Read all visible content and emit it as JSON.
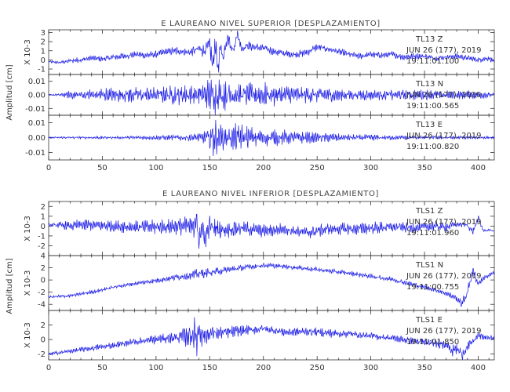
{
  "chart_data": [
    {
      "type": "line",
      "title": "E LAUREANO NIVEL SUPERIOR [DESPLAZAMIENTO]",
      "ylabel": "Amplitud [cm]",
      "xlim": [
        0,
        415
      ],
      "x_ticks": [
        "0",
        "50",
        "100",
        "150",
        "200",
        "250",
        "300",
        "350",
        "400"
      ],
      "panels": [
        {
          "ylim": [
            -1.6,
            3.3
          ],
          "scale_label": "X 10-3",
          "y_ticks": [
            {
              "v": 3,
              "t": "3"
            },
            {
              "v": 2,
              "t": "2"
            },
            {
              "v": 1,
              "t": "1"
            },
            {
              "v": 0,
              "t": "0"
            },
            {
              "v": -1,
              "t": "-1"
            }
          ],
          "station": [
            "TL13   Z",
            "JUN 26 (177), 2019",
            "19:11:01.100"
          ],
          "series": {
            "x": [
              0,
              10,
              20,
              30,
              40,
              50,
              60,
              70,
              80,
              90,
              100,
              110,
              120,
              130,
              140,
              145,
              150,
              153,
              155,
              158,
              160,
              163,
              165,
              168,
              170,
              173,
              175,
              178,
              180,
              185,
              190,
              200,
              210,
              220,
              230,
              240,
              250,
              260,
              270,
              280,
              290,
              300,
              310,
              320,
              330,
              340,
              350,
              360,
              370,
              380,
              390,
              400,
              410,
              415
            ],
            "trend": [
              -0.2,
              -0.3,
              -0.1,
              0.0,
              0.2,
              0.1,
              0.3,
              0.4,
              0.6,
              0.5,
              0.6,
              0.9,
              1.0,
              0.8,
              1.2,
              1.0,
              1.6,
              -0.8,
              2.0,
              -1.3,
              1.5,
              0.2,
              1.8,
              2.6,
              1.4,
              1.1,
              3.0,
              2.0,
              1.2,
              1.6,
              1.4,
              1.3,
              0.9,
              0.7,
              0.6,
              0.8,
              1.4,
              1.2,
              0.9,
              0.6,
              0.4,
              0.6,
              0.5,
              0.6,
              0.3,
              0.4,
              0.4,
              0.2,
              0.3,
              0.4,
              0.2,
              0.0,
              0.2,
              -0.2
            ],
            "amp": [
              0.15,
              0.15,
              0.25,
              0.3,
              0.3,
              0.3,
              0.35,
              0.35,
              0.35,
              0.35,
              0.4,
              0.4,
              0.45,
              0.45,
              0.6,
              0.7,
              1.1,
              1.2,
              1.1,
              0.9,
              0.9,
              0.8,
              0.8,
              0.8,
              0.7,
              0.7,
              0.7,
              0.6,
              0.5,
              0.5,
              0.45,
              0.45,
              0.4,
              0.4,
              0.4,
              0.4,
              0.4,
              0.35,
              0.35,
              0.35,
              0.35,
              0.35,
              0.35,
              0.35,
              0.35,
              0.35,
              0.3,
              0.3,
              0.3,
              0.3,
              0.3,
              0.3,
              0.3,
              0.25
            ]
          }
        },
        {
          "ylim": [
            -0.015,
            0.015
          ],
          "scale_label": "",
          "y_ticks": [
            {
              "v": 0.01,
              "t": "0.01"
            },
            {
              "v": 0,
              "t": "0.00"
            },
            {
              "v": -0.01,
              "t": "-0.01"
            }
          ],
          "station": [
            "TL13   N",
            "JUN 26 (177), 2019",
            "19:11:00.565"
          ],
          "series": {
            "x": [
              0,
              10,
              20,
              30,
              40,
              50,
              60,
              70,
              80,
              90,
              100,
              110,
              120,
              130,
              140,
              150,
              155,
              160,
              165,
              170,
              180,
              190,
              200,
              210,
              220,
              230,
              240,
              250,
              260,
              270,
              280,
              290,
              300,
              310,
              320,
              330,
              340,
              350,
              360,
              370,
              380,
              390,
              400,
              415
            ],
            "trend": [
              0,
              0,
              0,
              0,
              0,
              0,
              0,
              0,
              0,
              0,
              0,
              0,
              0,
              0,
              0,
              0,
              0,
              0,
              0,
              0,
              0,
              0,
              0,
              0,
              0,
              0,
              0,
              0,
              0,
              0,
              0,
              0,
              0,
              0,
              0,
              0,
              0,
              0,
              0,
              0,
              0,
              0,
              0,
              0
            ],
            "amp": [
              0.0005,
              0.0008,
              0.003,
              0.004,
              0.004,
              0.005,
              0.005,
              0.005,
              0.006,
              0.006,
              0.005,
              0.006,
              0.007,
              0.007,
              0.008,
              0.011,
              0.014,
              0.012,
              0.011,
              0.009,
              0.008,
              0.008,
              0.009,
              0.008,
              0.007,
              0.006,
              0.006,
              0.005,
              0.005,
              0.005,
              0.004,
              0.004,
              0.004,
              0.004,
              0.004,
              0.004,
              0.004,
              0.004,
              0.003,
              0.003,
              0.003,
              0.003,
              0.003,
              0.002
            ]
          }
        },
        {
          "ylim": [
            -0.015,
            0.015
          ],
          "scale_label": "",
          "y_ticks": [
            {
              "v": 0.01,
              "t": "0.01"
            },
            {
              "v": 0,
              "t": "0.00"
            },
            {
              "v": -0.01,
              "t": "-0.01"
            }
          ],
          "station": [
            "TL13   E",
            "JUN 26 (177), 2019",
            "19:11:00.820"
          ],
          "series": {
            "x": [
              0,
              20,
              40,
              60,
              80,
              100,
              120,
              140,
              145,
              150,
              153,
              155,
              158,
              160,
              165,
              170,
              175,
              180,
              190,
              200,
              210,
              220,
              230,
              240,
              250,
              260,
              280,
              300,
              320,
              340,
              360,
              380,
              400,
              415
            ],
            "trend": [
              0,
              0,
              0,
              0,
              0,
              0,
              0,
              0,
              0,
              0,
              0,
              0,
              0,
              0,
              0,
              0,
              0,
              0,
              0,
              0,
              0,
              0,
              0,
              0,
              0,
              0,
              0,
              0,
              0,
              0,
              0,
              0,
              0,
              0
            ],
            "amp": [
              0.0005,
              0.0008,
              0.0009,
              0.001,
              0.0012,
              0.0015,
              0.002,
              0.003,
              0.004,
              0.008,
              0.013,
              0.012,
              0.009,
              0.008,
              0.007,
              0.008,
              0.009,
              0.008,
              0.007,
              0.006,
              0.005,
              0.005,
              0.004,
              0.004,
              0.003,
              0.003,
              0.002,
              0.002,
              0.0015,
              0.0015,
              0.0012,
              0.001,
              0.001,
              0.0008
            ]
          }
        }
      ]
    },
    {
      "type": "line",
      "title": "E LAUREANO NIVEL INFERIOR [DESPLAZAMIENTO]",
      "ylabel": "Amplitud [cm]",
      "xlim": [
        0,
        415
      ],
      "x_ticks": [
        "0",
        "50",
        "100",
        "150",
        "200",
        "250",
        "300",
        "350",
        "400"
      ],
      "panels": [
        {
          "ylim": [
            -3.0,
            2.5
          ],
          "scale_label": "X 10-3",
          "y_ticks": [
            {
              "v": 2,
              "t": "2"
            },
            {
              "v": 1,
              "t": "1"
            },
            {
              "v": 0,
              "t": "0"
            },
            {
              "v": -1,
              "t": "-1"
            },
            {
              "v": -2,
              "t": "-2"
            }
          ],
          "station": [
            "TLS1   Z",
            "JUN 26 (177), 2019",
            "19:11:01.960"
          ],
          "series": {
            "x": [
              0,
              10,
              20,
              30,
              40,
              60,
              80,
              100,
              120,
              130,
              135,
              138,
              140,
              143,
              145,
              150,
              160,
              170,
              180,
              200,
              220,
              240,
              260,
              280,
              300,
              320,
              340,
              360,
              370,
              380,
              390,
              395,
              400,
              405,
              410,
              415
            ],
            "trend": [
              0.1,
              0.1,
              0.0,
              0.1,
              0.1,
              0.0,
              -0.1,
              -0.1,
              0.0,
              0.0,
              -0.2,
              1.4,
              -2.3,
              0.5,
              -1.5,
              0.0,
              -0.4,
              -0.3,
              -0.2,
              -0.5,
              -0.3,
              -0.7,
              -0.3,
              -0.3,
              -0.2,
              -0.1,
              -0.2,
              0.0,
              -0.1,
              0.2,
              0.1,
              -0.6,
              0.8,
              -0.5,
              -0.4,
              -0.5
            ],
            "amp": [
              0.15,
              0.3,
              0.5,
              0.55,
              0.55,
              0.6,
              0.6,
              0.7,
              0.8,
              1.0,
              1.2,
              1.4,
              1.4,
              1.3,
              1.2,
              1.1,
              0.9,
              0.8,
              0.7,
              0.6,
              0.6,
              0.6,
              0.6,
              0.6,
              0.6,
              0.5,
              0.5,
              0.5,
              0.5,
              0.4,
              0.3,
              0.3,
              0.3,
              0.2,
              0.1,
              0.1
            ]
          }
        },
        {
          "ylim": [
            -5.0,
            4.0
          ],
          "scale_label": "X 10-3",
          "y_ticks": [
            {
              "v": 4,
              "t": "4"
            },
            {
              "v": 2,
              "t": "2"
            },
            {
              "v": 0,
              "t": "0"
            },
            {
              "v": -2,
              "t": "-2"
            },
            {
              "v": -4,
              "t": "-4"
            }
          ],
          "station": [
            "TLS1   N",
            "JUN 26 (177), 2019",
            "19:11:00.755"
          ],
          "series": {
            "x": [
              0,
              20,
              40,
              60,
              80,
              100,
              120,
              140,
              150,
              160,
              180,
              200,
              220,
              240,
              260,
              280,
              300,
              320,
              340,
              360,
              370,
              380,
              385,
              390,
              395,
              400,
              405,
              415
            ],
            "trend": [
              -2.8,
              -2.6,
              -2.0,
              -1.2,
              -0.6,
              -0.1,
              0.5,
              1.0,
              1.2,
              1.5,
              2.0,
              2.4,
              2.2,
              1.9,
              1.5,
              1.1,
              0.6,
              0.1,
              -0.8,
              -1.6,
              -2.2,
              -3.0,
              -4.0,
              -2.0,
              1.5,
              -0.6,
              0.3,
              1.2
            ],
            "amp": [
              0.2,
              0.3,
              0.3,
              0.3,
              0.3,
              0.4,
              0.6,
              0.8,
              0.7,
              0.6,
              0.5,
              0.4,
              0.4,
              0.4,
              0.4,
              0.4,
              0.4,
              0.4,
              0.4,
              0.4,
              0.4,
              0.5,
              0.8,
              0.8,
              0.8,
              0.6,
              0.4,
              0.3
            ]
          }
        },
        {
          "ylim": [
            -2.8,
            4.0
          ],
          "scale_label": "X 10-3",
          "y_ticks": [
            {
              "v": 2,
              "t": "2"
            },
            {
              "v": 0,
              "t": "0"
            },
            {
              "v": -2,
              "t": "-2"
            }
          ],
          "station": [
            "TLS1   E",
            "JUN 26 (177), 2019",
            "19:11:01.850"
          ],
          "series": {
            "x": [
              0,
              20,
              40,
              60,
              80,
              100,
              120,
              130,
              135,
              138,
              140,
              145,
              150,
              160,
              180,
              200,
              220,
              240,
              260,
              280,
              300,
              320,
              340,
              360,
              370,
              375,
              380,
              385,
              390,
              400,
              410,
              415
            ],
            "trend": [
              -2.0,
              -1.6,
              -1.2,
              -0.8,
              -0.3,
              0.0,
              0.3,
              0.5,
              0.8,
              0.0,
              1.4,
              0.5,
              0.9,
              0.9,
              1.2,
              1.5,
              1.0,
              1.1,
              0.9,
              0.8,
              0.5,
              0.2,
              -0.2,
              -0.6,
              -0.5,
              -1.5,
              -1.3,
              -2.0,
              -1.0,
              0.5,
              0.2,
              0.3
            ],
            "amp": [
              0.2,
              0.3,
              0.4,
              0.4,
              0.5,
              0.6,
              0.8,
              1.5,
              2.2,
              2.3,
              2.1,
              1.4,
              1.0,
              0.8,
              0.7,
              0.6,
              0.6,
              0.6,
              0.6,
              0.5,
              0.5,
              0.5,
              0.5,
              0.6,
              0.8,
              0.9,
              0.9,
              0.8,
              0.7,
              0.5,
              0.4,
              0.3
            ]
          }
        }
      ]
    }
  ]
}
